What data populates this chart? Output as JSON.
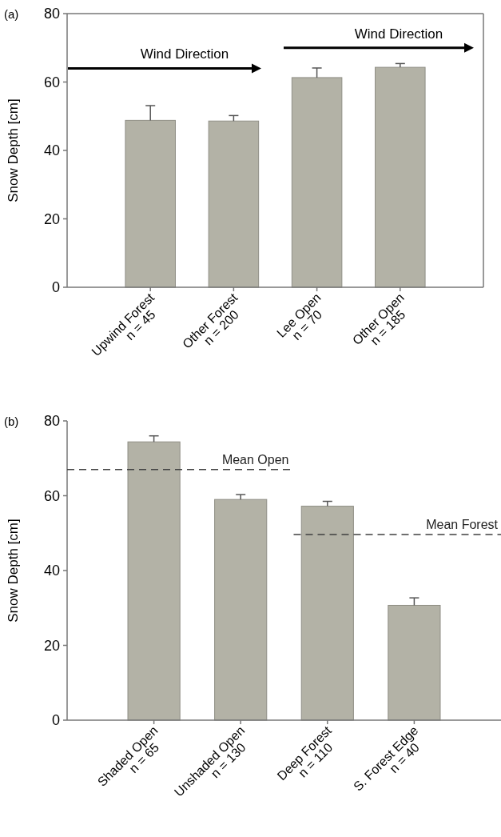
{
  "chart_data": [
    {
      "type": "bar",
      "title": "(a)",
      "ylabel": "Snow Depth [cm]",
      "categories": [
        "Upwind Forest\nn = 45",
        "Other Forest\nn = 200",
        "Lee Open\nn = 70",
        "Other Open\nn = 185"
      ],
      "values": [
        48.8,
        48.6,
        61.3,
        64.3
      ],
      "errors": [
        [
          48.8,
          53.1
        ],
        [
          48.6,
          50.2
        ],
        [
          61.3,
          64.1
        ],
        [
          64.3,
          65.4
        ]
      ],
      "color": "#b3b2a6",
      "ylim": [
        0,
        80
      ],
      "yticks": [
        0,
        20,
        40,
        60,
        80
      ],
      "annotations": [
        "Wind Direction",
        "Wind Direction"
      ]
    },
    {
      "type": "bar",
      "title": "(b)",
      "ylabel": "Snow Depth [cm]",
      "categories": [
        "Shaded Open\nn = 65",
        "Unshaded Open\nn = 130",
        "Deep Forest\nn = 110",
        "S. Forest Edge\nn = 40"
      ],
      "values": [
        74.4,
        59.0,
        57.2,
        30.7
      ],
      "errors": [
        [
          74.4,
          76.0
        ],
        [
          59.0,
          60.3
        ],
        [
          57.2,
          58.5
        ],
        [
          30.7,
          32.7
        ]
      ],
      "color": "#b3b2a6",
      "ylim": [
        0,
        80
      ],
      "yticks": [
        0,
        20,
        40,
        60,
        80
      ],
      "ref_lines": [
        {
          "axis": "y",
          "value": 67.0,
          "label": "Mean Open",
          "color": "#404040",
          "line_style": "dashed"
        },
        {
          "axis": "y",
          "value": 49.6,
          "label": "Mean Forest",
          "color": "#404040",
          "line_style": "dashed"
        }
      ]
    }
  ]
}
